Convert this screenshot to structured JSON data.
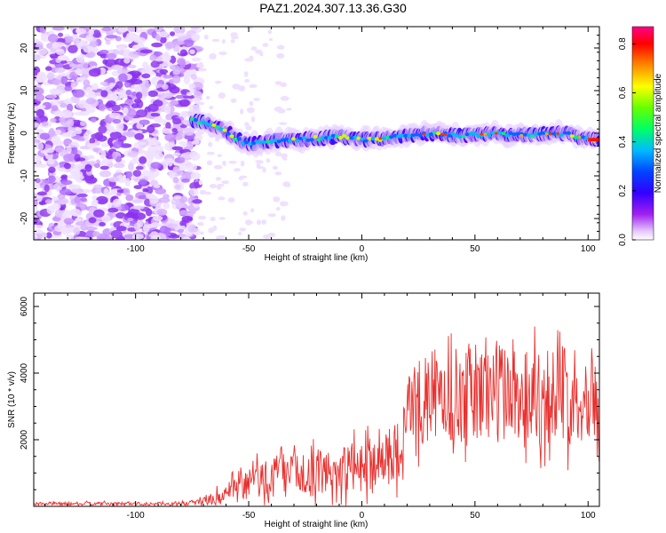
{
  "title": "PAZ1.2024.307.13.36.G30",
  "chart_data": [
    {
      "type": "heatmap",
      "xlabel": "Height of straight line (km)",
      "ylabel": "Frequency (Hz)",
      "xlim": [
        -145,
        105
      ],
      "ylim": [
        -25,
        25
      ],
      "xticks": [
        -100,
        -50,
        0,
        50,
        100
      ],
      "yticks": [
        -20,
        -10,
        0,
        10,
        20
      ],
      "colorbar": {
        "label": "Normalized spectral amplitude",
        "range": [
          0,
          0.87
        ],
        "ticks": [
          0.0,
          0.2,
          0.4,
          0.6,
          0.8
        ]
      },
      "ridge": {
        "x": [
          -75,
          -70,
          -65,
          -60,
          -55,
          -50,
          -45,
          -40,
          -30,
          -20,
          -10,
          0,
          10,
          20,
          30,
          40,
          50,
          60,
          70,
          80,
          90,
          100,
          105
        ],
        "freq": [
          3,
          2.5,
          1.5,
          0.5,
          -1.5,
          -2.5,
          -2.2,
          -1.8,
          -1.5,
          -1.2,
          -0.8,
          -1.5,
          -1.2,
          -0.5,
          0,
          -0.5,
          -0.3,
          0,
          -0.5,
          -0.2,
          0,
          -1.5,
          -1.5
        ]
      },
      "noise_region_x": [
        -145,
        -72
      ]
    },
    {
      "type": "line",
      "xlabel": "Height of straight line (km)",
      "ylabel": "SNR (10 * v/v)",
      "xlim": [
        -145,
        105
      ],
      "ylim": [
        0,
        6400
      ],
      "xticks": [
        -100,
        -50,
        0,
        50,
        100
      ],
      "yticks": [
        2000,
        4000,
        6000
      ],
      "color": "#e8312f",
      "envelope": {
        "x": [
          -145,
          -80,
          -70,
          -60,
          -50,
          -40,
          -30,
          -20,
          -10,
          0,
          10,
          18,
          20,
          30,
          40,
          50,
          60,
          70,
          80,
          90,
          100,
          105
        ],
        "mean": [
          80,
          80,
          150,
          350,
          700,
          900,
          950,
          1000,
          1100,
          1200,
          1500,
          1700,
          3000,
          3200,
          3300,
          3400,
          3500,
          3400,
          3400,
          3300,
          3400,
          3500
        ],
        "amp": [
          50,
          50,
          120,
          300,
          550,
          650,
          650,
          700,
          750,
          750,
          800,
          900,
          1300,
          1300,
          1400,
          1600,
          1600,
          1500,
          1500,
          1500,
          1400,
          1400
        ]
      }
    }
  ]
}
